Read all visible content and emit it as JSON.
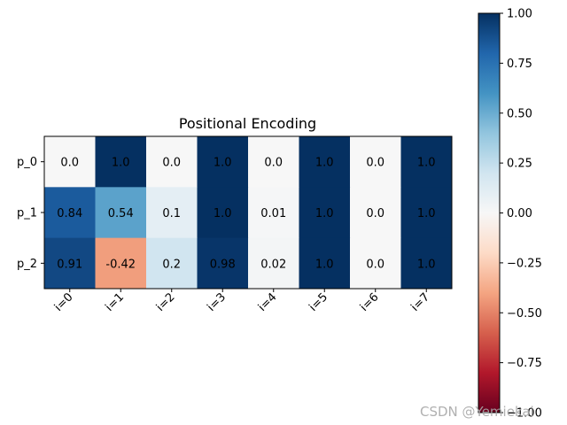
{
  "chart_data": {
    "type": "heatmap",
    "title": "Positional Encoding",
    "rows": [
      "p_0",
      "p_1",
      "p_2"
    ],
    "columns": [
      "i=0",
      "i=1",
      "i=2",
      "i=3",
      "i=4",
      "i=5",
      "i=6",
      "i=7"
    ],
    "values": [
      [
        0.0,
        1.0,
        0.0,
        1.0,
        0.0,
        1.0,
        0.0,
        1.0
      ],
      [
        0.84,
        0.54,
        0.1,
        1.0,
        0.01,
        1.0,
        0.0,
        1.0
      ],
      [
        0.91,
        -0.42,
        0.2,
        0.98,
        0.02,
        1.0,
        0.0,
        1.0
      ]
    ],
    "cell_labels": [
      [
        "0.0",
        "1.0",
        "0.0",
        "1.0",
        "0.0",
        "1.0",
        "0.0",
        "1.0"
      ],
      [
        "0.84",
        "0.54",
        "0.1",
        "1.0",
        "0.01",
        "1.0",
        "0.0",
        "1.0"
      ],
      [
        "0.91",
        "-0.42",
        "0.2",
        "0.98",
        "0.02",
        "1.0",
        "0.0",
        "1.0"
      ]
    ],
    "colormap": "RdBu",
    "vmin": -1.0,
    "vmax": 1.0,
    "colorbar_ticks": [
      "1.00",
      "0.75",
      "0.50",
      "0.25",
      "0.00",
      "−0.25",
      "−0.50",
      "−0.75",
      "−1.00"
    ],
    "colorbar_tick_values": [
      1.0,
      0.75,
      0.5,
      0.25,
      0.0,
      -0.25,
      -0.5,
      -0.75,
      -1.0
    ]
  },
  "watermark": "CSDN @Yemiekai"
}
